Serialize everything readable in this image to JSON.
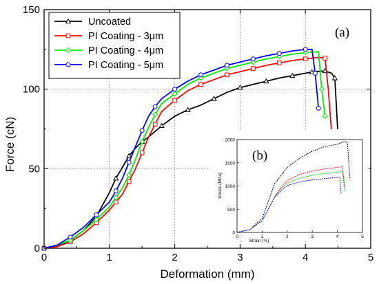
{
  "chart_data": [
    {
      "type": "line",
      "panel_label": "(a)",
      "xlabel": "Deformation (mm)",
      "ylabel": "Force (cN)",
      "xlim": [
        0,
        5
      ],
      "ylim": [
        0,
        150
      ],
      "x_ticks": [
        0,
        1,
        2,
        3,
        4,
        5
      ],
      "y_ticks": [
        0,
        50,
        100,
        150
      ],
      "grid": true,
      "legend_position": "top-left",
      "series": [
        {
          "name": "Uncoated",
          "color": "#000000",
          "marker": "triangle",
          "x": [
            0,
            0.2,
            0.4,
            0.6,
            0.8,
            1.0,
            1.1,
            1.2,
            1.3,
            1.4,
            1.5,
            1.6,
            1.8,
            2.0,
            2.2,
            2.4,
            2.6,
            2.8,
            3.0,
            3.2,
            3.4,
            3.6,
            3.8,
            4.0,
            4.1,
            4.2,
            4.3,
            4.4,
            4.45,
            4.5
          ],
          "y": [
            0,
            1,
            5,
            11,
            20,
            35,
            44,
            51,
            58,
            63,
            67,
            70,
            77,
            83,
            87,
            90,
            94,
            98,
            101,
            103,
            105,
            107,
            108.5,
            110,
            110.8,
            111.2,
            111.5,
            110,
            107,
            70
          ]
        },
        {
          "name": "PI Coating - 3μm",
          "color": "#ff0000",
          "marker": "square",
          "x": [
            0,
            0.2,
            0.4,
            0.6,
            0.8,
            1.0,
            1.1,
            1.2,
            1.3,
            1.4,
            1.5,
            1.6,
            1.7,
            1.8,
            2.0,
            2.2,
            2.4,
            2.6,
            2.8,
            3.0,
            3.2,
            3.4,
            3.6,
            3.8,
            4.0,
            4.2,
            4.3,
            4.35,
            4.4
          ],
          "y": [
            0,
            1,
            4,
            9,
            16,
            24,
            29,
            34,
            42,
            50,
            60,
            70,
            78,
            86,
            93,
            99,
            103,
            106,
            109,
            111,
            113,
            115,
            116.5,
            118,
            119,
            120,
            119.5,
            100,
            73
          ]
        },
        {
          "name": "PI Coating - 4μm",
          "color": "#00ee00",
          "marker": "diamond",
          "x": [
            0,
            0.2,
            0.4,
            0.6,
            0.8,
            1.0,
            1.1,
            1.2,
            1.3,
            1.4,
            1.5,
            1.6,
            1.7,
            1.8,
            2.0,
            2.2,
            2.4,
            2.6,
            2.8,
            3.0,
            3.2,
            3.4,
            3.6,
            3.8,
            4.0,
            4.2,
            4.25,
            4.3
          ],
          "y": [
            0,
            2,
            5,
            11,
            18,
            26,
            32,
            38,
            46,
            56,
            67,
            76,
            84,
            91,
            97,
            103,
            107,
            110,
            113,
            115,
            117,
            119,
            120.5,
            122,
            123,
            123.5,
            100,
            83
          ]
        },
        {
          "name": "PI Coating - 5μm",
          "color": "#0000ff",
          "marker": "circle",
          "x": [
            0,
            0.2,
            0.4,
            0.6,
            0.8,
            1.0,
            1.1,
            1.2,
            1.3,
            1.4,
            1.5,
            1.6,
            1.7,
            1.8,
            2.0,
            2.2,
            2.4,
            2.6,
            2.8,
            3.0,
            3.2,
            3.4,
            3.6,
            3.8,
            4.0,
            4.1,
            4.15,
            4.2
          ],
          "y": [
            0,
            2,
            7,
            13,
            21,
            29,
            36,
            44,
            54,
            64,
            74,
            83,
            89,
            94,
            100,
            105,
            109,
            112,
            115,
            117,
            119,
            121,
            122.5,
            124,
            125,
            125,
            110,
            88
          ]
        }
      ]
    },
    {
      "type": "line",
      "panel_label": "(b)",
      "xlabel": "Strain (%)",
      "ylabel": "Stress (MPa)",
      "xlim": [
        0,
        5
      ],
      "ylim": [
        0,
        2000
      ],
      "x_ticks": [
        0,
        1,
        2,
        3,
        4,
        5
      ],
      "y_ticks": [
        0,
        500,
        1000,
        1500,
        2000
      ],
      "series": [
        {
          "color": "#000000",
          "x": [
            0,
            0.5,
            1.0,
            1.2,
            1.5,
            2.0,
            2.5,
            3.0,
            3.5,
            4.0,
            4.3,
            4.4,
            4.5
          ],
          "y": [
            0,
            60,
            300,
            600,
            1050,
            1400,
            1600,
            1750,
            1850,
            1900,
            1960,
            1930,
            1150
          ]
        },
        {
          "color": "#ff0000",
          "x": [
            0,
            0.5,
            1.0,
            1.2,
            1.5,
            1.8,
            2.0,
            2.5,
            3.0,
            3.5,
            4.0,
            4.2,
            4.3
          ],
          "y": [
            0,
            60,
            250,
            450,
            780,
            1000,
            1120,
            1250,
            1320,
            1370,
            1400,
            1420,
            950
          ]
        },
        {
          "color": "#00cc00",
          "x": [
            0,
            0.5,
            1.0,
            1.2,
            1.5,
            1.8,
            2.0,
            2.5,
            3.0,
            3.5,
            4.0,
            4.2,
            4.3
          ],
          "y": [
            0,
            60,
            250,
            450,
            770,
            960,
            1060,
            1170,
            1230,
            1270,
            1300,
            1310,
            880
          ]
        },
        {
          "color": "#0000ff",
          "x": [
            0,
            0.5,
            1.0,
            1.2,
            1.5,
            1.8,
            2.0,
            2.5,
            3.0,
            3.5,
            4.0,
            4.1,
            4.15
          ],
          "y": [
            0,
            60,
            250,
            450,
            760,
            920,
            1010,
            1090,
            1130,
            1160,
            1190,
            1190,
            830
          ]
        }
      ]
    }
  ]
}
